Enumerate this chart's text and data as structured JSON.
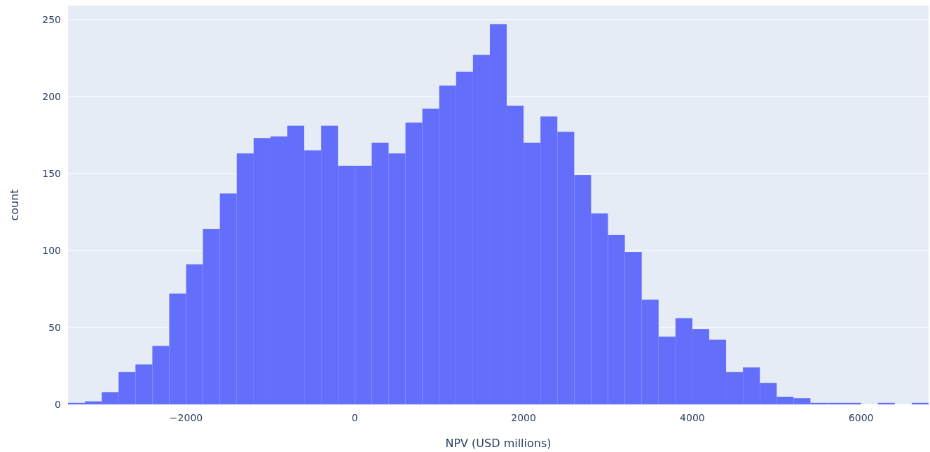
{
  "chart_data": {
    "type": "histogram",
    "xlabel": "NPV (USD millions)",
    "ylabel": "count",
    "bins": [
      -3400,
      -3200,
      -3000,
      -2800,
      -2600,
      -2400,
      -2200,
      -2000,
      -1800,
      -1600,
      -1400,
      -1200,
      -1000,
      -800,
      -600,
      -400,
      -200,
      0,
      200,
      400,
      600,
      800,
      1000,
      1200,
      1400,
      1600,
      1800,
      2000,
      2200,
      2400,
      2600,
      2800,
      3000,
      3200,
      3400,
      3600,
      3800,
      4000,
      4200,
      4400,
      4600,
      4800,
      5000,
      5200,
      5400,
      5600,
      5800,
      6000,
      6200,
      6400,
      6600,
      6800
    ],
    "values": [
      1,
      2,
      8,
      21,
      26,
      38,
      72,
      91,
      114,
      137,
      163,
      173,
      174,
      181,
      165,
      181,
      155,
      155,
      170,
      163,
      183,
      192,
      207,
      216,
      227,
      247,
      194,
      170,
      187,
      177,
      149,
      124,
      110,
      99,
      68,
      44,
      56,
      49,
      42,
      21,
      24,
      14,
      5,
      4,
      1,
      1,
      1,
      0,
      1,
      0,
      1
    ],
    "color": "#636efa",
    "xlim": [
      -3400,
      6800
    ],
    "ylim": [
      0,
      259
    ],
    "xticks": [
      {
        "value": -2000,
        "label": "−2000"
      },
      0,
      2000,
      4000,
      6000
    ],
    "yticks": [
      0,
      50,
      100,
      150,
      200,
      250
    ],
    "grid": "y"
  }
}
